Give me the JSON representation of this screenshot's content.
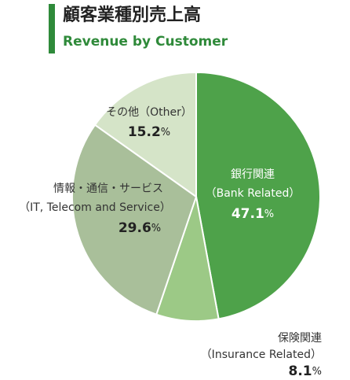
{
  "chart_data": {
    "type": "pie",
    "title": "顧客業種別売上高",
    "subtitle": "Revenue by Customer",
    "categories": [
      "銀行関連",
      "保険関連",
      "情報・通信・サービス",
      "その他"
    ],
    "categories_en": [
      "（Bank Related）",
      "（Insurance Related）",
      "（IT, Telecom and Service）",
      "（Other）"
    ],
    "values": [
      47.1,
      8.1,
      29.6,
      15.2
    ],
    "value_labels": [
      "47.1%",
      "8.1%",
      "29.6%",
      "15.2%"
    ],
    "colors": [
      "#4ea24a",
      "#9cc986",
      "#a9bf9a",
      "#d5e4c8"
    ]
  }
}
